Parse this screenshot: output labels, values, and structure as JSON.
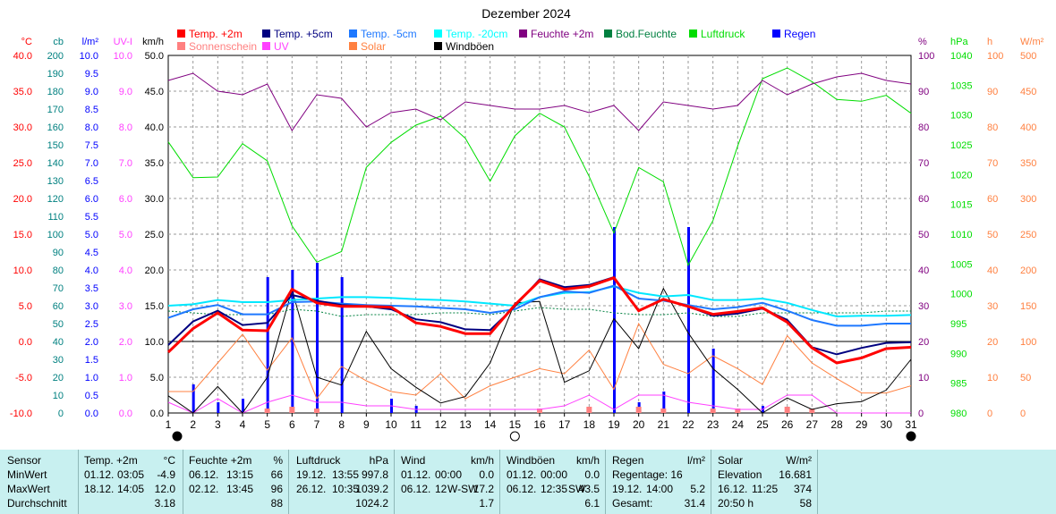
{
  "chart_data": {
    "type": "line",
    "title": "Dezember 2024",
    "x_days": [
      1,
      2,
      3,
      4,
      5,
      6,
      7,
      8,
      9,
      10,
      11,
      12,
      13,
      14,
      15,
      16,
      17,
      18,
      19,
      20,
      21,
      22,
      23,
      24,
      25,
      26,
      27,
      28,
      29,
      30,
      31
    ],
    "xlim": [
      1,
      31
    ],
    "moon_phases": [
      {
        "day": 1,
        "phase": "new"
      },
      {
        "day": 15,
        "phase": "full"
      },
      {
        "day": 31,
        "phase": "new"
      }
    ],
    "legend": [
      {
        "label": "Temp. +2m",
        "color": "#ff0000"
      },
      {
        "label": "Temp. +5cm",
        "color": "#000080"
      },
      {
        "label": "Temp. -5cm",
        "color": "#1e78ff"
      },
      {
        "label": "Temp. -20cm",
        "color": "#00ffff"
      },
      {
        "label": "Feuchte +2m",
        "color": "#800080"
      },
      {
        "label": "Bod.Feuchte",
        "color": "#008040"
      },
      {
        "label": "Luftdruck",
        "color": "#00dd00"
      },
      {
        "label": "Regen",
        "color": "#0000ff"
      },
      {
        "label": "Sonnenschein",
        "color": "#ff8080"
      },
      {
        "label": "UV",
        "color": "#ff40ff"
      },
      {
        "label": "Solar",
        "color": "#ff8040"
      },
      {
        "label": "Windböen",
        "color": "#000000"
      }
    ],
    "axes": [
      {
        "unit": "°C",
        "color": "#ff0000",
        "min": -10,
        "max": 40,
        "ticks": [
          "-10.0",
          "-5.0",
          "0.0",
          "5.0",
          "10.0",
          "15.0",
          "20.0",
          "25.0",
          "30.0",
          "35.0",
          "40.0"
        ]
      },
      {
        "unit": "cb",
        "color": "#008080",
        "min": 0,
        "max": 200,
        "ticks": [
          "0",
          "10",
          "20",
          "30",
          "40",
          "50",
          "60",
          "70",
          "80",
          "90",
          "100",
          "110",
          "120",
          "130",
          "140",
          "150",
          "160",
          "170",
          "180",
          "190",
          "200"
        ]
      },
      {
        "unit": "l/m²",
        "color": "#0000ff",
        "min": 0,
        "max": 10,
        "ticks": [
          "0.0",
          "0.5",
          "1.0",
          "1.5",
          "2.0",
          "2.5",
          "3.0",
          "3.5",
          "4.0",
          "4.5",
          "5.0",
          "5.5",
          "6.0",
          "6.5",
          "7.0",
          "7.5",
          "8.0",
          "8.5",
          "9.0",
          "9.5",
          "10.0"
        ]
      },
      {
        "unit": "UV-I",
        "color": "#ff40ff",
        "min": 0,
        "max": 10,
        "ticks": [
          "0.0",
          "1.0",
          "2.0",
          "3.0",
          "4.0",
          "5.0",
          "6.0",
          "7.0",
          "8.0",
          "9.0",
          "10.0"
        ]
      },
      {
        "unit": "km/h",
        "color": "#000000",
        "min": 0,
        "max": 50,
        "ticks": [
          "0.0",
          "5.0",
          "10.0",
          "15.0",
          "20.0",
          "25.0",
          "30.0",
          "35.0",
          "40.0",
          "45.0",
          "50.0"
        ]
      },
      {
        "unit": "%",
        "color": "#800080",
        "min": 0,
        "max": 100,
        "ticks": [
          "0",
          "10",
          "20",
          "30",
          "40",
          "50",
          "60",
          "70",
          "80",
          "90",
          "100"
        ]
      },
      {
        "unit": "hPa",
        "color": "#00dd00",
        "min": 980,
        "max": 1040,
        "ticks": [
          "980",
          "985",
          "990",
          "995",
          "1000",
          "1005",
          "1010",
          "1015",
          "1020",
          "1025",
          "1030",
          "1035",
          "1040"
        ]
      },
      {
        "unit": "h",
        "color": "#ff8040",
        "min": 0,
        "max": 100,
        "ticks": [
          "0",
          "10",
          "20",
          "30",
          "40",
          "50",
          "60",
          "70",
          "80",
          "90",
          "100"
        ]
      },
      {
        "unit": "W/m²",
        "color": "#ff8040",
        "min": 0,
        "max": 500,
        "ticks": [
          "0",
          "50",
          "100",
          "150",
          "200",
          "250",
          "300",
          "350",
          "400",
          "450",
          "500"
        ]
      }
    ],
    "series": [
      {
        "name": "Luftdruck",
        "unit": "hPa",
        "color": "#00dd00",
        "values": [
          1025.5,
          1019.5,
          1019.6,
          1025.2,
          1022.3,
          1011.4,
          1005.3,
          1007.1,
          1021.2,
          1025.4,
          1028.3,
          1029.8,
          1026.1,
          1018.9,
          1026.5,
          1030.3,
          1028.0,
          1019.7,
          1010.2,
          1021.2,
          1018.8,
          1004.8,
          1012.3,
          1024.8,
          1036.1,
          1037.9,
          1035.6,
          1032.6,
          1032.3,
          1033.3,
          1030.3
        ]
      },
      {
        "name": "Feuchte +2m",
        "unit": "%",
        "color": "#800080",
        "values": [
          93,
          95,
          90,
          89,
          92,
          79,
          89,
          88,
          80,
          84,
          85,
          82,
          87,
          86,
          85,
          85,
          86,
          84,
          86,
          79,
          87,
          86,
          85,
          86,
          93,
          89,
          92,
          94,
          95,
          93,
          92
        ]
      },
      {
        "name": "Temp. -20cm",
        "unit": "°C",
        "color": "#00e8ff",
        "values": [
          5.0,
          5.2,
          5.8,
          5.5,
          5.5,
          5.8,
          6.0,
          6.2,
          6.2,
          6.1,
          5.9,
          5.8,
          5.6,
          5.3,
          5.0,
          6.2,
          6.8,
          6.9,
          7.7,
          6.8,
          6.3,
          6.5,
          5.8,
          5.8,
          6.0,
          5.4,
          4.4,
          3.5,
          3.6,
          3.6,
          3.7
        ]
      },
      {
        "name": "Temp. -5cm",
        "unit": "°C",
        "color": "#1e78ff",
        "values": [
          3.3,
          4.5,
          5.1,
          3.8,
          3.8,
          5.5,
          5.6,
          5.3,
          5.1,
          5.0,
          4.9,
          4.7,
          4.5,
          4.0,
          4.5,
          6.2,
          7.0,
          6.8,
          7.8,
          6.0,
          5.7,
          5.1,
          4.5,
          4.8,
          5.4,
          4.3,
          3.0,
          2.2,
          2.2,
          2.5,
          2.5
        ]
      },
      {
        "name": "Bod.Feuchte",
        "unit": "cb",
        "color": "#008040",
        "values": [
          57,
          56,
          55,
          55,
          55,
          58,
          57,
          54,
          55,
          55,
          55,
          56,
          56,
          55,
          57,
          59,
          58,
          58,
          56,
          55,
          55,
          56,
          54,
          54,
          56,
          56,
          56,
          56,
          56,
          57,
          57
        ]
      },
      {
        "name": "Temp. +5cm",
        "unit": "°C",
        "color": "#000080",
        "values": [
          -0.5,
          2.8,
          4.3,
          2.3,
          2.6,
          6.5,
          5.7,
          5.1,
          4.9,
          4.5,
          3.1,
          2.7,
          1.7,
          1.6,
          4.9,
          8.7,
          7.6,
          7.9,
          9.0,
          4.3,
          5.9,
          4.9,
          3.6,
          3.9,
          4.6,
          3.0,
          -0.8,
          -1.8,
          -0.9,
          -0.2,
          -0.1
        ]
      },
      {
        "name": "Temp. +2m",
        "unit": "°C",
        "color": "#ff0000",
        "values": [
          -1.5,
          1.8,
          4.0,
          1.6,
          1.5,
          7.3,
          5.4,
          4.9,
          4.9,
          4.8,
          2.6,
          2.1,
          1.1,
          1.1,
          5.1,
          8.5,
          7.3,
          7.7,
          8.9,
          4.3,
          5.9,
          4.9,
          3.8,
          4.2,
          4.7,
          2.7,
          -0.9,
          -3.0,
          -2.3,
          -1.0,
          -0.8
        ]
      },
      {
        "name": "Solar",
        "unit": "W/m²",
        "color": "#ff8040",
        "values": [
          30,
          30,
          70,
          110,
          60,
          105,
          20,
          65,
          45,
          30,
          25,
          55,
          20,
          38,
          50,
          62,
          55,
          88,
          33,
          125,
          68,
          55,
          80,
          62,
          40,
          108,
          70,
          48,
          28,
          28,
          38
        ]
      },
      {
        "name": "Windböen",
        "unit": "km/h",
        "color": "#000000",
        "values": [
          2.4,
          0.0,
          3.7,
          0.0,
          5.0,
          17.2,
          5.0,
          3.9,
          11.4,
          6.2,
          3.6,
          1.4,
          2.3,
          7.0,
          15.4,
          15.6,
          4.3,
          5.9,
          13.2,
          9.0,
          17.4,
          11.2,
          6.2,
          3.3,
          0.0,
          2.1,
          0.5,
          1.3,
          1.6,
          3.2,
          7.5
        ]
      },
      {
        "name": "UV",
        "unit": "UV-I",
        "color": "#ff40ff",
        "values": [
          0.3,
          0.0,
          0.4,
          0.0,
          0.3,
          0.5,
          0.3,
          0.3,
          0.2,
          0.2,
          0.1,
          0.1,
          0.1,
          0.1,
          0.1,
          0.1,
          0.2,
          0.5,
          0.1,
          0.5,
          0.5,
          0.3,
          0.2,
          0.1,
          0.1,
          0.5,
          0.5,
          0.0,
          0.0,
          0.0,
          0.0
        ]
      },
      {
        "name": "Regen",
        "unit": "l/m²",
        "color": "#0000ff",
        "values": [
          0.0,
          0.8,
          0.3,
          0.4,
          3.8,
          4.0,
          4.2,
          3.8,
          0.0,
          0.4,
          0.2,
          0.0,
          0.0,
          0.0,
          0.0,
          0.1,
          0.0,
          0.0,
          5.2,
          0.3,
          0.6,
          5.2,
          1.8,
          0.0,
          0.2,
          0.1,
          0.0,
          0.0,
          0.0,
          0.0,
          0.0
        ]
      },
      {
        "name": "Sonnenschein",
        "unit": "h",
        "color": "#ff8080",
        "values": [
          0,
          0,
          0,
          0,
          1,
          2,
          1,
          0,
          0,
          0,
          0,
          0,
          0,
          0,
          0,
          1,
          0,
          2,
          0,
          2,
          1,
          0,
          1,
          1,
          0,
          2,
          1,
          0,
          0,
          0,
          0
        ]
      }
    ]
  },
  "stats": {
    "labels": {
      "sensor": "Sensor",
      "min": "MinWert",
      "max": "MaxWert",
      "avg": "Durchschnitt"
    },
    "temp": {
      "title": "Temp. +2m",
      "unit": "°C",
      "min_date": "01.12.",
      "min_time": "03:05",
      "min_val": "-4.9",
      "max_date": "18.12.",
      "max_time": "14:05",
      "max_val": "12.0",
      "avg": "3.18"
    },
    "hum": {
      "title": "Feuchte +2m",
      "unit": "%",
      "min_date": "06.12.",
      "min_time": "13:15",
      "min_val": "66",
      "max_date": "02.12.",
      "max_time": "13:45",
      "max_val": "96",
      "avg": "88"
    },
    "press": {
      "title": "Luftdruck",
      "unit": "hPa",
      "min_date": "19.12.",
      "min_time": "13:55",
      "min_val": "997.8",
      "max_date": "26.12.",
      "max_time": "10:35",
      "max_val": "1039.2",
      "avg": "1024.2"
    },
    "wind": {
      "title": "Wind",
      "unit": "km/h",
      "min_date": "01.12.",
      "min_time": "00:00",
      "min_val": "0.0",
      "max_date": "06.12.",
      "max_time": "12",
      "max_dir": "W-SW",
      "max_val": "17.2",
      "avg": "1.7"
    },
    "gust": {
      "title": "Windböen",
      "unit": "km/h",
      "min_date": "01.12.",
      "min_time": "00:00",
      "min_val": "0.0",
      "max_date": "06.12.",
      "max_time": "12:35",
      "max_dir": "SW",
      "max_val": "43.5",
      "avg": "6.1"
    },
    "rain": {
      "title": "Regen",
      "unit": "l/m²",
      "r1_label": "Regentage: 16",
      "r2_left": "19.12.",
      "r2_mid": "14:00",
      "r2_val": "5.2",
      "r3_label": "Gesamt:",
      "r3_val": "31.4"
    },
    "solar": {
      "title": "Solar",
      "unit": "W/m²",
      "r1_label": "Elevation",
      "r1_val": "16.681",
      "r2_left": "16.12.",
      "r2_mid": "11:25",
      "r2_val": "374",
      "r3_label": "20:50 h",
      "r3_val": "58"
    }
  }
}
